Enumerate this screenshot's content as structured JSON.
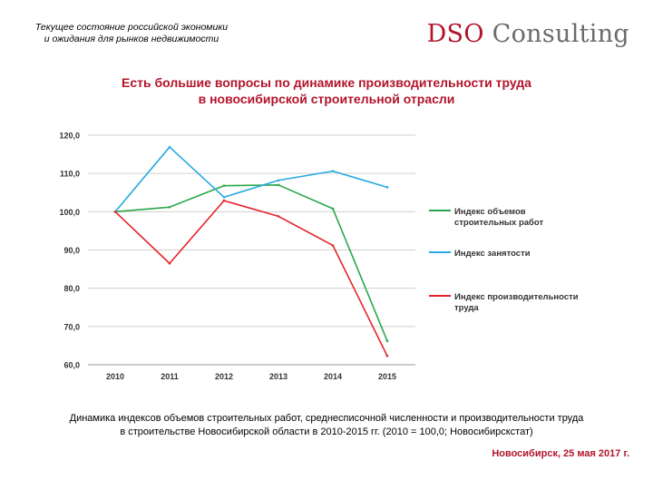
{
  "header": {
    "line1": "Текущее состояние российской экономики",
    "line2": "и ожидания для рынков недвижимости"
  },
  "logo": {
    "part1": "DSO",
    "part2": "Consulting"
  },
  "title": {
    "line1": "Есть большие вопросы по динамике производительности труда",
    "line2": "в новосибирской строительной отрасли"
  },
  "chart_data": {
    "type": "line",
    "categories": [
      "2010",
      "2011",
      "2012",
      "2013",
      "2014",
      "2015"
    ],
    "ylim": [
      60,
      120
    ],
    "yticks": [
      "60,0",
      "70,0",
      "80,0",
      "90,0",
      "100,0",
      "110,0",
      "120,0"
    ],
    "grid": true,
    "legend_position": "right",
    "series": [
      {
        "name_lines": [
          "Индекс объемов",
          "строительных работ"
        ],
        "color": "#2aa84a",
        "values": [
          100.0,
          101.2,
          106.8,
          107.0,
          100.8,
          66.2
        ]
      },
      {
        "name_lines": [
          "Индекс занятости"
        ],
        "color": "#27a9e1",
        "values": [
          100.0,
          116.9,
          103.8,
          108.2,
          110.6,
          106.4
        ]
      },
      {
        "name_lines": [
          "Индекс производительности",
          "труда"
        ],
        "color": "#e3232b",
        "values": [
          100.0,
          86.5,
          102.9,
          98.8,
          91.2,
          62.3
        ]
      }
    ]
  },
  "caption": {
    "line1": "Динамика индексов объемов строительных работ, среднесписочной численности и производительности труда",
    "line2": "в строительстве Новосибирской области в 2010-2015 гг. (2010 = 100,0; Новосибирскстат)"
  },
  "footer": "Новосибирск, 25 мая 2017 г."
}
